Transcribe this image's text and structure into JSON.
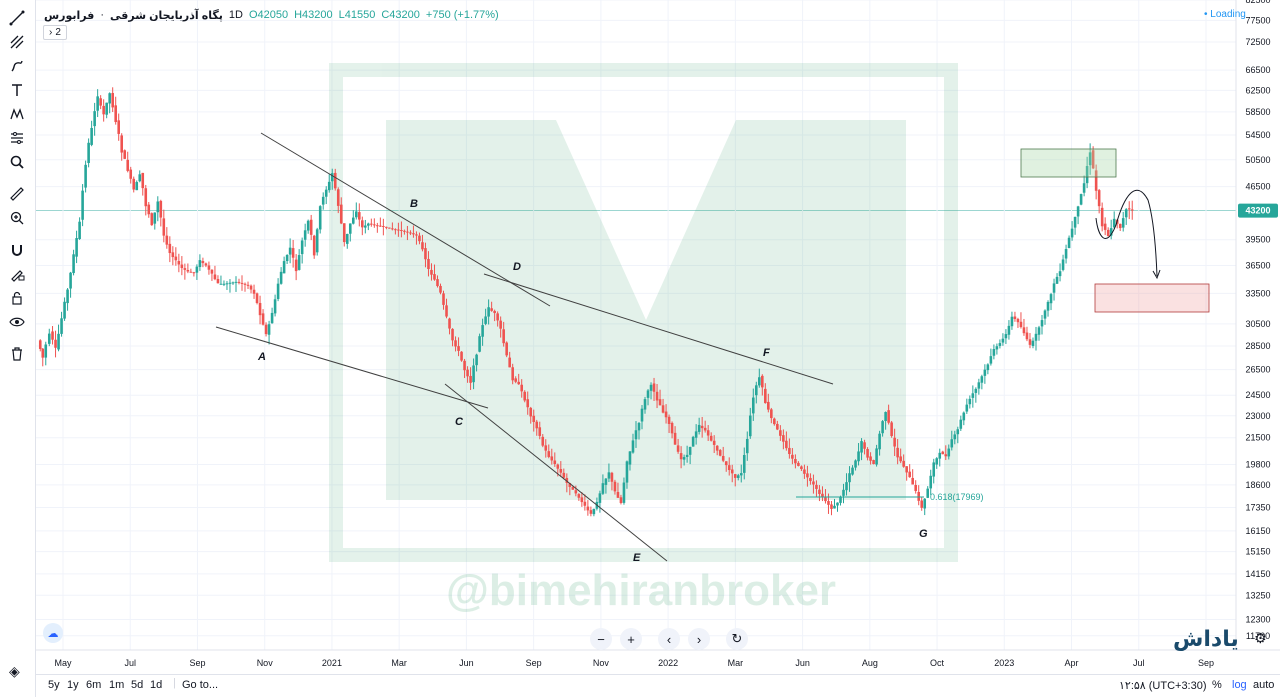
{
  "header": {
    "symbol": "فرابورس",
    "separator": "·",
    "interval": "1D",
    "name": "پگاه آذربایجان شرقی",
    "open": "O42050",
    "high": "H43200",
    "low": "L41550",
    "close": "C43200",
    "change": "+750 (+1.77%)",
    "indicator_count": "2",
    "loading": "Loading"
  },
  "colors": {
    "up": "#26a69a",
    "down": "#ef5350",
    "price_line": "#26a69a",
    "trendline": "#404040",
    "watermark": "#2e9b62"
  },
  "watermark": {
    "text": "@bimehiranbroker"
  },
  "logo": {
    "text": "یاداش"
  },
  "chart_data": {
    "type": "candlestick",
    "title": "",
    "log_scale": true,
    "y_ticks": [
      82500,
      77500,
      72500,
      66500,
      62500,
      58500,
      54500,
      50500,
      46500,
      43200,
      39500,
      36500,
      33500,
      30500,
      28500,
      26500,
      24500,
      23000,
      21500,
      19800,
      18600,
      17350,
      16150,
      15150,
      14150,
      13250,
      12300,
      11700
    ],
    "ylim": [
      11200,
      82500
    ],
    "x_ticks": [
      "May",
      "Jul",
      "Sep",
      "Nov",
      "2021",
      "Mar",
      "Jun",
      "Sep",
      "Nov",
      "2022",
      "Mar",
      "Jun",
      "Aug",
      "Oct",
      "2023",
      "Apr",
      "Jul",
      "Sep"
    ],
    "last_price": 43200,
    "x_range": [
      0,
      1197
    ],
    "series_anchor": [
      [
        0,
        29000
      ],
      [
        5,
        27500
      ],
      [
        12,
        29800
      ],
      [
        18,
        28200
      ],
      [
        24,
        31000
      ],
      [
        30,
        34000
      ],
      [
        36,
        37500
      ],
      [
        42,
        42000
      ],
      [
        48,
        50000
      ],
      [
        54,
        56000
      ],
      [
        60,
        61000
      ],
      [
        66,
        58000
      ],
      [
        72,
        62000
      ],
      [
        78,
        57000
      ],
      [
        84,
        52000
      ],
      [
        90,
        49000
      ],
      [
        96,
        46000
      ],
      [
        102,
        48500
      ],
      [
        108,
        44000
      ],
      [
        114,
        41500
      ],
      [
        120,
        44500
      ],
      [
        126,
        40000
      ],
      [
        132,
        38000
      ],
      [
        138,
        37000
      ],
      [
        144,
        36200
      ],
      [
        150,
        35800
      ],
      [
        156,
        35700
      ],
      [
        162,
        37000
      ],
      [
        168,
        36500
      ],
      [
        174,
        35500
      ],
      [
        180,
        34500
      ],
      [
        186,
        34500
      ],
      [
        192,
        34600
      ],
      [
        198,
        34700
      ],
      [
        204,
        34500
      ],
      [
        210,
        34300
      ],
      [
        216,
        33500
      ],
      [
        222,
        31500
      ],
      [
        228,
        29500
      ],
      [
        234,
        31500
      ],
      [
        240,
        34500
      ],
      [
        246,
        37000
      ],
      [
        252,
        38500
      ],
      [
        258,
        36000
      ],
      [
        264,
        39500
      ],
      [
        270,
        42000
      ],
      [
        276,
        38000
      ],
      [
        282,
        44000
      ],
      [
        288,
        46000
      ],
      [
        294,
        48500
      ],
      [
        300,
        44000
      ],
      [
        306,
        39000
      ],
      [
        312,
        41500
      ],
      [
        318,
        43000
      ],
      [
        324,
        41000
      ],
      [
        330,
        41500
      ],
      [
        336,
        41300
      ],
      [
        342,
        41200
      ],
      [
        348,
        41000
      ],
      [
        354,
        40800
      ],
      [
        360,
        40700
      ],
      [
        366,
        40500
      ],
      [
        372,
        40300
      ]
    ],
    "annotations": [
      "A",
      "B",
      "C",
      "D",
      "E",
      "F",
      "G"
    ],
    "fib_label": "0.618(17969)",
    "zones": [
      {
        "name": "target-zone",
        "top": 52000,
        "bottom": 47500
      },
      {
        "name": "retrace-zone",
        "top": 34500,
        "bottom": 31500
      }
    ]
  },
  "bottom": {
    "ranges": [
      "5y",
      "1y",
      "6m",
      "1m",
      "5d",
      "1d"
    ],
    "goto": "Go to...",
    "clock": "۱۲:۵۸ (UTC+3:30)",
    "percent": "%",
    "log": "log",
    "auto": "auto"
  }
}
